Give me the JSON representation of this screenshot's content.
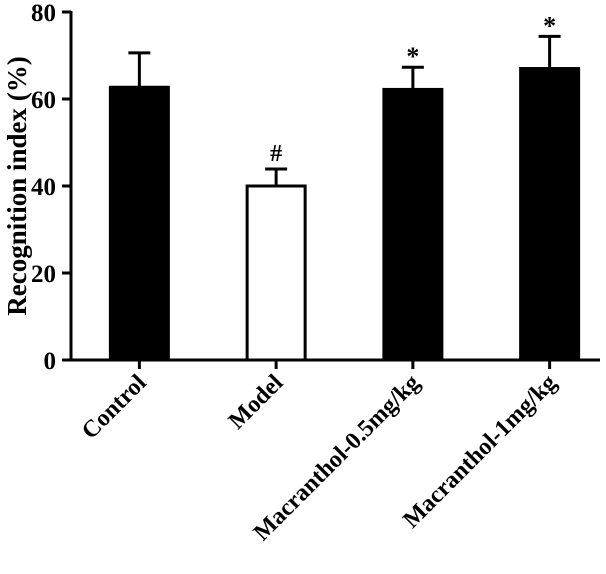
{
  "chart_data": {
    "type": "bar",
    "title": "",
    "xlabel": "",
    "ylabel": "Recognition index (%)",
    "ylim": [
      0,
      80
    ],
    "yticks": [
      0,
      20,
      40,
      60,
      80
    ],
    "grid": false,
    "categories": [
      "Control",
      "Model",
      "Macranthol-0.5mg/kg",
      "Macranthol-1mg/kg"
    ],
    "values": [
      62.7,
      40.0,
      62.2,
      67.0
    ],
    "error_upper": [
      70.6,
      43.9,
      67.3,
      74.4
    ],
    "bar_fill": [
      "#000000",
      "#ffffff",
      "#000000",
      "#000000"
    ],
    "annotations": [
      "",
      "#",
      "*",
      "*"
    ]
  }
}
